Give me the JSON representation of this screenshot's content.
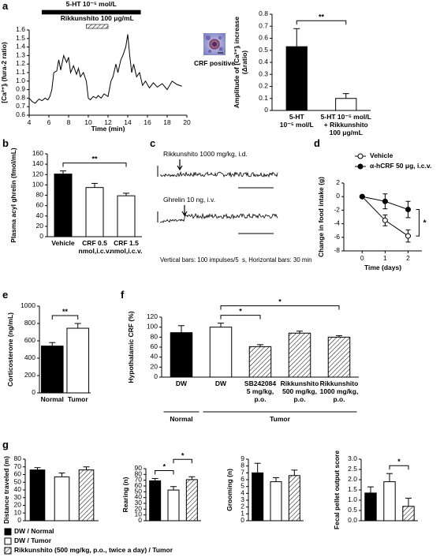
{
  "chart_data": [
    {
      "type": "line",
      "panel": "a",
      "ylabel": "[Ca²⁺]ᵢ (fura-2 ratio)",
      "xlabel": "Time (min)",
      "x": [
        4.0,
        4.3,
        4.6,
        5.0,
        5.3,
        5.6,
        5.9,
        6.1,
        6.3,
        6.5,
        6.8,
        7.0,
        7.2,
        7.5,
        7.8,
        8.0,
        8.2,
        8.5,
        8.8,
        9.0,
        9.2,
        9.5,
        9.8,
        10.0,
        10.2,
        10.5,
        10.8,
        11.0,
        11.3,
        11.6,
        12.0,
        12.3,
        12.5,
        12.8,
        13.0,
        13.3,
        13.5,
        13.8,
        14.0,
        14.2,
        14.4,
        14.6,
        14.9,
        15.2,
        15.5,
        15.8,
        16.2,
        16.6,
        17.0,
        17.5,
        18.0,
        18.5,
        19.0,
        19.5
      ],
      "values": [
        0.8,
        0.76,
        0.74,
        0.79,
        0.77,
        0.8,
        0.78,
        0.82,
        0.9,
        1.1,
        1.12,
        1.25,
        1.13,
        1.3,
        1.22,
        1.28,
        1.1,
        1.18,
        1.08,
        1.15,
        1.05,
        1.1,
        1.0,
        0.8,
        0.78,
        0.82,
        0.8,
        0.83,
        0.8,
        0.85,
        0.82,
        1.0,
        1.05,
        1.2,
        1.1,
        1.25,
        1.3,
        1.4,
        1.55,
        1.3,
        1.1,
        1.2,
        1.05,
        1.1,
        0.95,
        1.0,
        0.92,
        0.98,
        0.93,
        0.97,
        0.9,
        1.0,
        0.96,
        0.94
      ],
      "color": "#000000",
      "xlim": [
        4,
        20
      ],
      "xticks": [
        4,
        6,
        8,
        10,
        12,
        14,
        16,
        18,
        20
      ],
      "ylim": [
        0.6,
        1.6
      ],
      "yticks": [
        0.6,
        0.7,
        0.8,
        0.9,
        {
          "value": 1,
          "label": "1.0"
        },
        1.1,
        1.2,
        1.3,
        1.4,
        1.5,
        1.6
      ],
      "bars": [
        {
          "label": "5-HT 10⁻⁵ mol/L",
          "x": [
            5.3,
            15.3
          ],
          "fill": "#000000"
        },
        {
          "label": "Rikkunshito 100 μg/mL",
          "x": [
            9.8,
            12
          ],
          "fill": "hatch"
        }
      ]
    },
    {
      "type": "image",
      "caption": "CRF positive"
    },
    {
      "type": "bar",
      "ylabel": "Amplitude of [Ca²⁺]ᵢ increase\n(Δratio)",
      "categories": [
        "5-HT\n10⁻⁵ mol/L",
        "5-HT 10⁻⁵ mol/L\n+ Rikkunshito\n100 μg/mL"
      ],
      "values": [
        0.53,
        0.1
      ],
      "errors": [
        0.15,
        0.04
      ],
      "fills": [
        "#000000",
        "#ffffff"
      ],
      "ylim": [
        0,
        0.8
      ],
      "yticks": [
        0,
        0.1,
        0.2,
        0.3,
        0.4,
        0.5,
        0.6,
        0.7,
        0.8
      ],
      "significance": [
        {
          "from": 0,
          "to": 1,
          "label": "**"
        }
      ]
    },
    {
      "type": "bar",
      "panel": "b",
      "ylabel": "Plasma acyl ghrelin (fmol/mL)",
      "categories": [
        "Vehicle",
        "CRF 0.5\nnmol,i.c.v.",
        "CRF 1.5\nnmol,i.c.v."
      ],
      "values": [
        121,
        95,
        79
      ],
      "errors": [
        6,
        8,
        5
      ],
      "fills": [
        "#000000",
        "#ffffff",
        "#ffffff"
      ],
      "ylim": [
        0,
        160
      ],
      "yticks": [
        0,
        20,
        40,
        60,
        80,
        100,
        120,
        140,
        160
      ],
      "significance": [
        {
          "from": 0,
          "to": 2,
          "label": "**"
        }
      ]
    },
    {
      "type": "trace",
      "panel": "c",
      "traces": [
        {
          "label": "Rikkunshito 1000 mg/kg, i.d."
        },
        {
          "label": "Ghrelin 10 ng, i.v."
        }
      ],
      "caption": "Vertical bars: 100 impulses/5  s, Horizontal bars: 30 min"
    },
    {
      "type": "line",
      "panel": "d",
      "ylabel": "Change in food intake (g)",
      "xlabel": "Time (days)",
      "x": [
        0,
        1,
        2
      ],
      "xlim": [
        -0.8,
        2.6
      ],
      "xticks": [
        0,
        1,
        2
      ],
      "ylim": [
        -8,
        2
      ],
      "yticks": [
        -8,
        -6,
        -4,
        -2,
        0,
        2
      ],
      "series": [
        {
          "name": "Vehicle",
          "color": "#000000",
          "fill": "#ffffff",
          "values": [
            0,
            -3.5,
            -5.8
          ],
          "errors": [
            0,
            0.8,
            0.9
          ]
        },
        {
          "name": "α-hCRF 50 μg, i.c.v.",
          "color": "#000000",
          "fill": "#000000",
          "values": [
            0,
            -0.7,
            -1.9
          ],
          "errors": [
            0,
            1.1,
            1.2
          ]
        }
      ],
      "significance": [
        {
          "at": 2,
          "label": "*"
        }
      ]
    },
    {
      "type": "bar",
      "panel": "e",
      "ylabel": "Corticosterone (ng/mL)",
      "categories": [
        "Normal",
        "Tumor"
      ],
      "values": [
        540,
        745
      ],
      "errors": [
        40,
        55
      ],
      "fills": [
        "#000000",
        "#ffffff"
      ],
      "ylim": [
        0,
        1000
      ],
      "yticks": [
        0,
        200,
        400,
        600,
        800,
        1000
      ],
      "significance": [
        {
          "from": 0,
          "to": 1,
          "label": "**"
        }
      ]
    },
    {
      "type": "bar",
      "panel": "f",
      "ylabel": "Hypothalamic CRF (%)",
      "categories": [
        "DW",
        "DW",
        "SB242084\n5 mg/kg,\np.o.",
        "Rikkunshito\n500 mg/kg,\np.o.",
        "Rikkunshito\n1000 mg/kg,\np.o."
      ],
      "values": [
        89,
        100,
        61,
        88,
        80
      ],
      "errors": [
        14,
        8,
        4,
        4,
        3
      ],
      "fills": [
        "#000000",
        "#ffffff",
        "hatch",
        "hatch",
        "hatch"
      ],
      "ylim": [
        0,
        120
      ],
      "yticks": [
        0,
        20,
        40,
        60,
        80,
        100,
        120
      ],
      "significance": [
        {
          "from": 1,
          "to": 2,
          "label": "*"
        },
        {
          "from": 1,
          "to": 4,
          "label": "*"
        }
      ],
      "groups": [
        {
          "label": "Normal",
          "from": 0,
          "to": 0
        },
        {
          "label": "Tumor",
          "from": 1,
          "to": 4
        }
      ]
    },
    {
      "type": "bar",
      "panel": "g",
      "ylabel": "Distance traveled (m)",
      "values": [
        66,
        57,
        66
      ],
      "errors": [
        3,
        5,
        4
      ],
      "fills": [
        "#000000",
        "#ffffff",
        "hatch"
      ],
      "ylim": [
        0,
        80
      ],
      "yticks": [
        0,
        10,
        20,
        30,
        40,
        50,
        60,
        70,
        80
      ]
    },
    {
      "type": "bar",
      "ylabel": "Rearing (n)",
      "values": [
        69,
        53,
        71
      ],
      "errors": [
        4,
        6,
        5
      ],
      "fills": [
        "#000000",
        "#ffffff",
        "hatch"
      ],
      "ylim": [
        0,
        90
      ],
      "yticks": [
        0,
        10,
        20,
        30,
        40,
        50,
        60,
        70,
        80,
        90
      ],
      "significance": [
        {
          "from": 0,
          "to": 1,
          "label": "*"
        },
        {
          "from": 1,
          "to": 2,
          "label": "*"
        }
      ]
    },
    {
      "type": "bar",
      "ylabel": "Grooming (n)",
      "values": [
        7,
        5.7,
        6.6
      ],
      "errors": [
        1.4,
        0.6,
        0.8
      ],
      "fills": [
        "#000000",
        "#ffffff",
        "hatch"
      ],
      "ylim": [
        0,
        9
      ],
      "yticks": [
        0,
        1,
        2,
        3,
        4,
        5,
        6,
        7,
        8,
        9
      ]
    },
    {
      "type": "bar",
      "ylabel": "Fecal pellet output score",
      "values": [
        1.35,
        1.9,
        0.7
      ],
      "errors": [
        0.3,
        0.4,
        0.4
      ],
      "fills": [
        "#000000",
        "#ffffff",
        "hatch"
      ],
      "ylim": [
        0,
        3
      ],
      "yticks": [
        {
          "value": 0,
          "label": "0.0"
        },
        0.5,
        {
          "value": 1,
          "label": "1.0"
        },
        1.5,
        {
          "value": 2,
          "label": "2.0"
        },
        2.5,
        {
          "value": 3,
          "label": "3.0"
        }
      ],
      "significance": [
        {
          "from": 1,
          "to": 2,
          "label": "*"
        }
      ]
    },
    {
      "type": "legend",
      "entries": [
        {
          "name": "DW / Normal",
          "fill": "#000000"
        },
        {
          "name": "DW / Tumor",
          "fill": "#ffffff"
        },
        {
          "name": "Rikkunshito (500 mg/kg, p.o., twice a day) / Tumor",
          "fill": "hatch"
        }
      ]
    }
  ]
}
